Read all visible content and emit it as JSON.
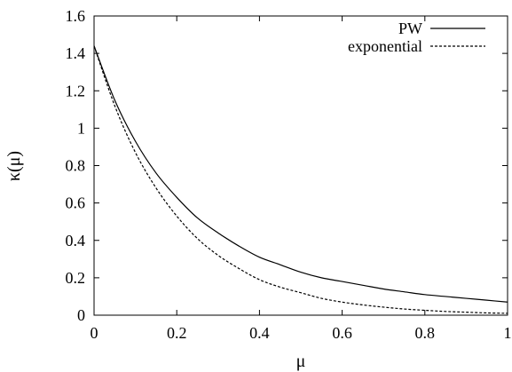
{
  "chart_data": {
    "type": "line",
    "xlabel": "μ",
    "ylabel": "κ(μ)",
    "xlim": [
      0,
      1
    ],
    "ylim": [
      0,
      1.6
    ],
    "xticks": [
      "0",
      "0.2",
      "0.4",
      "0.6",
      "0.8",
      "1"
    ],
    "yticks": [
      "0",
      "0.2",
      "0.4",
      "0.6",
      "0.8",
      "1",
      "1.2",
      "1.4",
      "1.6"
    ],
    "grid": false,
    "legend_position": "top-right",
    "x": [
      0,
      0.05,
      0.1,
      0.15,
      0.2,
      0.25,
      0.3,
      0.35,
      0.4,
      0.45,
      0.5,
      0.55,
      0.6,
      0.65,
      0.7,
      0.75,
      0.8,
      0.85,
      0.9,
      0.95,
      1.0
    ],
    "series": [
      {
        "name": "PW",
        "style": "solid",
        "color": "#000000",
        "values": [
          1.44,
          1.15,
          0.93,
          0.76,
          0.63,
          0.52,
          0.44,
          0.37,
          0.31,
          0.27,
          0.23,
          0.2,
          0.18,
          0.16,
          0.14,
          0.125,
          0.11,
          0.1,
          0.09,
          0.08,
          0.07
        ]
      },
      {
        "name": "exponential",
        "style": "dashed",
        "color": "#000000",
        "values": [
          1.44,
          1.12,
          0.87,
          0.68,
          0.53,
          0.41,
          0.32,
          0.25,
          0.19,
          0.15,
          0.12,
          0.09,
          0.07,
          0.055,
          0.043,
          0.033,
          0.026,
          0.02,
          0.016,
          0.012,
          0.01
        ]
      }
    ]
  }
}
